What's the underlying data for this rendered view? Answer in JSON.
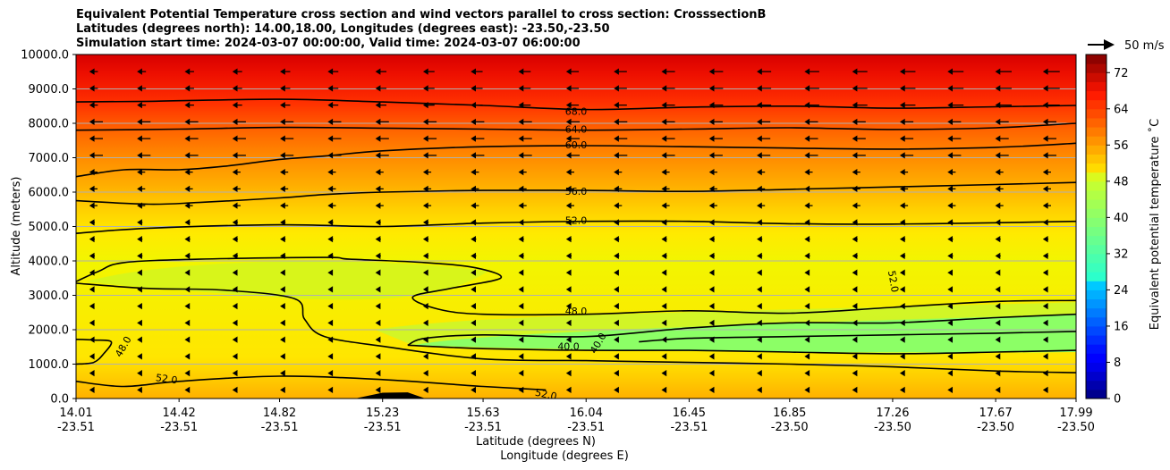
{
  "chart_data": {
    "type": "heatmap",
    "title_lines": [
      "Equivalent Potential Temperature cross section and wind vectors parallel to cross section: CrosssectionB",
      "Latitudes (degrees north): 14.00,18.00, Longitudes (degrees east): -23.50,-23.50",
      "Simulation start time: 2024-03-07 00:00:00, Valid time: 2024-03-07 06:00:00"
    ],
    "ylabel": "Altitude (meters)",
    "xlabel_lat": "Latitude (degrees N)",
    "xlabel_lon": "Longitude (degrees E)",
    "ylim": [
      0,
      10000
    ],
    "yticks": [
      "0.0",
      "1000.0",
      "2000.0",
      "3000.0",
      "4000.0",
      "5000.0",
      "6000.0",
      "7000.0",
      "8000.0",
      "9000.0",
      "10000.0"
    ],
    "ytick_values": [
      0,
      1000,
      2000,
      3000,
      4000,
      5000,
      6000,
      7000,
      8000,
      9000,
      10000
    ],
    "xlim": [
      14.01,
      17.99
    ],
    "xtick_lats": [
      "14.01",
      "14.42",
      "14.82",
      "15.23",
      "15.63",
      "16.04",
      "16.45",
      "16.85",
      "17.26",
      "17.67",
      "17.99"
    ],
    "xtick_lons": [
      "-23.51",
      "-23.51",
      "-23.51",
      "-23.51",
      "-23.51",
      "-23.51",
      "-23.51",
      "-23.50",
      "-23.50",
      "-23.50",
      "-23.50"
    ],
    "xtick_values": [
      14.01,
      14.42,
      14.82,
      15.23,
      15.63,
      16.04,
      16.45,
      16.85,
      17.26,
      17.67,
      17.99
    ],
    "colorbar": {
      "label": "Equivalent potential temperature ˚C",
      "ticks": [
        "0",
        "8",
        "16",
        "24",
        "32",
        "40",
        "48",
        "56",
        "64",
        "72"
      ],
      "tick_values": [
        0,
        8,
        16,
        24,
        32,
        40,
        48,
        56,
        64,
        72
      ],
      "range": [
        0,
        76
      ]
    },
    "wind_key_label": "50 m/s",
    "contour_levels": [
      40,
      48,
      52,
      56,
      60,
      64,
      68
    ],
    "contour_labels": [
      {
        "text": "68.0",
        "x": 16.0,
        "y": 8330
      },
      {
        "text": "64.0",
        "x": 16.0,
        "y": 7800
      },
      {
        "text": "60.0",
        "x": 16.0,
        "y": 7350
      },
      {
        "text": "56.0",
        "x": 16.0,
        "y": 6000
      },
      {
        "text": "52.0",
        "x": 16.0,
        "y": 5150
      },
      {
        "text": "48.0",
        "x": 16.0,
        "y": 2520
      },
      {
        "text": "40.0",
        "x": 15.97,
        "y": 1500
      },
      {
        "text": "40.0",
        "x": 16.09,
        "y": 1600
      },
      {
        "text": "52.0",
        "x": 17.26,
        "y": 3400
      },
      {
        "text": "48.0",
        "x": 14.2,
        "y": 1500
      },
      {
        "text": "52.0",
        "x": 14.37,
        "y": 550
      },
      {
        "text": "52.0",
        "x": 15.88,
        "y": 100
      }
    ],
    "series": [
      {
        "name": "theta_e 68",
        "points": [
          [
            14.01,
            8620
          ],
          [
            14.3,
            8640
          ],
          [
            14.82,
            8700
          ],
          [
            15.23,
            8620
          ],
          [
            15.63,
            8520
          ],
          [
            16.04,
            8400
          ],
          [
            16.45,
            8470
          ],
          [
            16.85,
            8500
          ],
          [
            17.26,
            8440
          ],
          [
            17.67,
            8480
          ],
          [
            17.99,
            8520
          ]
        ]
      },
      {
        "name": "theta_e 64",
        "points": [
          [
            14.01,
            7800
          ],
          [
            14.42,
            7830
          ],
          [
            14.82,
            7880
          ],
          [
            15.23,
            7860
          ],
          [
            15.63,
            7830
          ],
          [
            16.04,
            7800
          ],
          [
            16.45,
            7830
          ],
          [
            16.85,
            7870
          ],
          [
            17.26,
            7820
          ],
          [
            17.67,
            7870
          ],
          [
            17.99,
            8000
          ]
        ]
      },
      {
        "name": "theta_e 60",
        "points": [
          [
            14.01,
            6450
          ],
          [
            14.2,
            6650
          ],
          [
            14.42,
            6650
          ],
          [
            14.6,
            6750
          ],
          [
            14.82,
            6950
          ],
          [
            15.0,
            7050
          ],
          [
            15.23,
            7200
          ],
          [
            15.63,
            7320
          ],
          [
            16.04,
            7350
          ],
          [
            16.45,
            7320
          ],
          [
            16.85,
            7280
          ],
          [
            17.26,
            7250
          ],
          [
            17.67,
            7300
          ],
          [
            17.99,
            7420
          ]
        ]
      },
      {
        "name": "theta_e 56",
        "points": [
          [
            14.01,
            5750
          ],
          [
            14.3,
            5650
          ],
          [
            14.5,
            5700
          ],
          [
            14.82,
            5830
          ],
          [
            15.0,
            5930
          ],
          [
            15.23,
            6000
          ],
          [
            15.63,
            6050
          ],
          [
            16.04,
            6050
          ],
          [
            16.45,
            6020
          ],
          [
            16.85,
            6080
          ],
          [
            17.26,
            6150
          ],
          [
            17.67,
            6220
          ],
          [
            17.99,
            6280
          ]
        ]
      },
      {
        "name": "theta_e 52",
        "points": [
          [
            14.01,
            4800
          ],
          [
            14.3,
            4950
          ],
          [
            14.82,
            5050
          ],
          [
            15.23,
            5000
          ],
          [
            15.63,
            5100
          ],
          [
            16.04,
            5150
          ],
          [
            16.45,
            5150
          ],
          [
            16.85,
            5080
          ],
          [
            17.26,
            5070
          ],
          [
            17.67,
            5110
          ],
          [
            17.99,
            5150
          ]
        ]
      },
      {
        "name": "theta_e 48",
        "points": [
          [
            14.01,
            3400
          ],
          [
            14.1,
            3700
          ],
          [
            14.2,
            3950
          ],
          [
            14.5,
            4050
          ],
          [
            15.0,
            4100
          ],
          [
            15.1,
            4050
          ],
          [
            15.4,
            3950
          ],
          [
            15.6,
            3800
          ],
          [
            15.7,
            3500
          ],
          [
            15.5,
            3200
          ],
          [
            15.35,
            2950
          ],
          [
            15.45,
            2600
          ],
          [
            15.63,
            2450
          ],
          [
            16.04,
            2450
          ],
          [
            16.45,
            2550
          ],
          [
            16.85,
            2480
          ],
          [
            17.26,
            2650
          ],
          [
            17.67,
            2820
          ],
          [
            17.99,
            2850
          ]
        ]
      },
      {
        "name": "theta_e 48 sw",
        "points": [
          [
            14.01,
            1000
          ],
          [
            14.08,
            1050
          ],
          [
            14.12,
            1300
          ],
          [
            14.15,
            1650
          ],
          [
            14.08,
            1700
          ],
          [
            14.01,
            1720
          ]
        ]
      },
      {
        "name": "theta_e 48 lower",
        "points": [
          [
            14.01,
            3350
          ],
          [
            14.3,
            3200
          ],
          [
            14.6,
            3150
          ],
          [
            14.88,
            2900
          ],
          [
            14.92,
            2300
          ],
          [
            15.0,
            1800
          ],
          [
            15.25,
            1500
          ],
          [
            15.63,
            1150
          ],
          [
            16.04,
            1100
          ],
          [
            16.45,
            1050
          ],
          [
            16.85,
            1000
          ],
          [
            17.26,
            920
          ],
          [
            17.67,
            800
          ],
          [
            17.99,
            750
          ]
        ]
      },
      {
        "name": "theta_e 40",
        "points": [
          [
            15.33,
            1550
          ],
          [
            15.4,
            1750
          ],
          [
            15.63,
            1850
          ],
          [
            16.04,
            1800
          ],
          [
            16.45,
            2050
          ],
          [
            16.85,
            2200
          ],
          [
            17.26,
            2200
          ],
          [
            17.67,
            2350
          ],
          [
            17.99,
            2450
          ]
        ]
      },
      {
        "name": "theta_e 40 lower",
        "points": [
          [
            15.33,
            1550
          ],
          [
            15.63,
            1450
          ],
          [
            16.04,
            1400
          ],
          [
            16.45,
            1400
          ],
          [
            16.85,
            1350
          ],
          [
            17.26,
            1300
          ],
          [
            17.67,
            1350
          ],
          [
            17.99,
            1400
          ]
        ]
      },
      {
        "name": "theta_e 40 inner",
        "points": [
          [
            16.25,
            1650
          ],
          [
            16.45,
            1750
          ],
          [
            16.85,
            1800
          ],
          [
            17.26,
            1850
          ],
          [
            17.67,
            1900
          ],
          [
            17.99,
            1950
          ]
        ]
      },
      {
        "name": "theta_e 52 lower",
        "points": [
          [
            14.01,
            500
          ],
          [
            14.2,
            350
          ],
          [
            14.42,
            500
          ],
          [
            14.82,
            650
          ],
          [
            15.23,
            550
          ],
          [
            15.63,
            350
          ],
          [
            15.88,
            250
          ]
        ]
      }
    ],
    "terrain": [
      [
        15.12,
        0
      ],
      [
        15.23,
        170
      ],
      [
        15.33,
        180
      ],
      [
        15.4,
        0
      ]
    ]
  }
}
